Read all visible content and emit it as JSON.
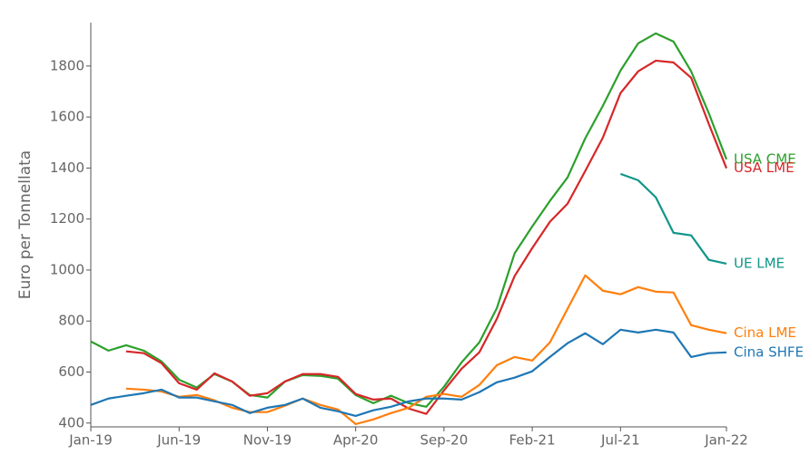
{
  "chart_data": {
    "type": "line",
    "y_label": "Euro per Tonnellata",
    "categories": [
      "Jan-19",
      null,
      null,
      null,
      null,
      "Jun-19",
      null,
      null,
      null,
      null,
      "Nov-19",
      null,
      null,
      null,
      null,
      "Apr-20",
      null,
      null,
      null,
      null,
      "Sep-20",
      null,
      null,
      null,
      null,
      "Feb-21",
      null,
      null,
      null,
      null,
      "Jul-21",
      null,
      null,
      null,
      null,
      null,
      "Jan-22"
    ],
    "ylim": [
      385,
      1970
    ],
    "yticks": [
      400,
      600,
      800,
      1000,
      1200,
      1400,
      1600,
      1800
    ],
    "grid": false,
    "legend": "line-end",
    "series": [
      {
        "name": "USA CME",
        "color": "#2ca02c",
        "values": [
          720,
          684,
          705,
          684,
          642,
          570,
          539,
          592,
          563,
          510,
          500,
          563,
          588,
          585,
          574,
          510,
          478,
          507,
          478,
          464,
          542,
          638,
          716,
          851,
          1065,
          1171,
          1271,
          1363,
          1516,
          1644,
          1782,
          1889,
          1928,
          1896,
          1779,
          1615,
          1434
        ]
      },
      {
        "name": "USA LME",
        "color": "#d62728",
        "values": [
          null,
          null,
          681,
          674,
          635,
          556,
          531,
          595,
          563,
          507,
          517,
          563,
          592,
          592,
          581,
          514,
          492,
          496,
          457,
          436,
          528,
          613,
          677,
          809,
          976,
          1086,
          1189,
          1260,
          1388,
          1519,
          1694,
          1779,
          1821,
          1814,
          1754,
          1573,
          1399
        ]
      },
      {
        "name": "UE LME",
        "color": "#10968a",
        "values": [
          null,
          null,
          null,
          null,
          null,
          null,
          null,
          null,
          null,
          null,
          null,
          null,
          null,
          null,
          null,
          null,
          null,
          null,
          null,
          null,
          null,
          null,
          null,
          null,
          null,
          null,
          null,
          null,
          null,
          null,
          1377,
          1352,
          1285,
          1146,
          1136,
          1040,
          1025
        ]
      },
      {
        "name": "Cina LME",
        "color": "#ff7f0e",
        "values": [
          null,
          null,
          535,
          531,
          524,
          503,
          510,
          489,
          460,
          443,
          443,
          468,
          496,
          471,
          453,
          396,
          414,
          439,
          460,
          503,
          514,
          503,
          549,
          627,
          659,
          645,
          716,
          848,
          979,
          919,
          905,
          933,
          915,
          912,
          784,
          766,
          752
        ]
      },
      {
        "name": "Cina SHFE",
        "color": "#1f77b4",
        "values": [
          471,
          496,
          507,
          517,
          531,
          500,
          500,
          485,
          471,
          439,
          460,
          471,
          496,
          460,
          446,
          428,
          450,
          464,
          485,
          496,
          496,
          492,
          521,
          560,
          578,
          603,
          659,
          713,
          752,
          709,
          766,
          755,
          766,
          755,
          659,
          674,
          677
        ]
      }
    ]
  }
}
